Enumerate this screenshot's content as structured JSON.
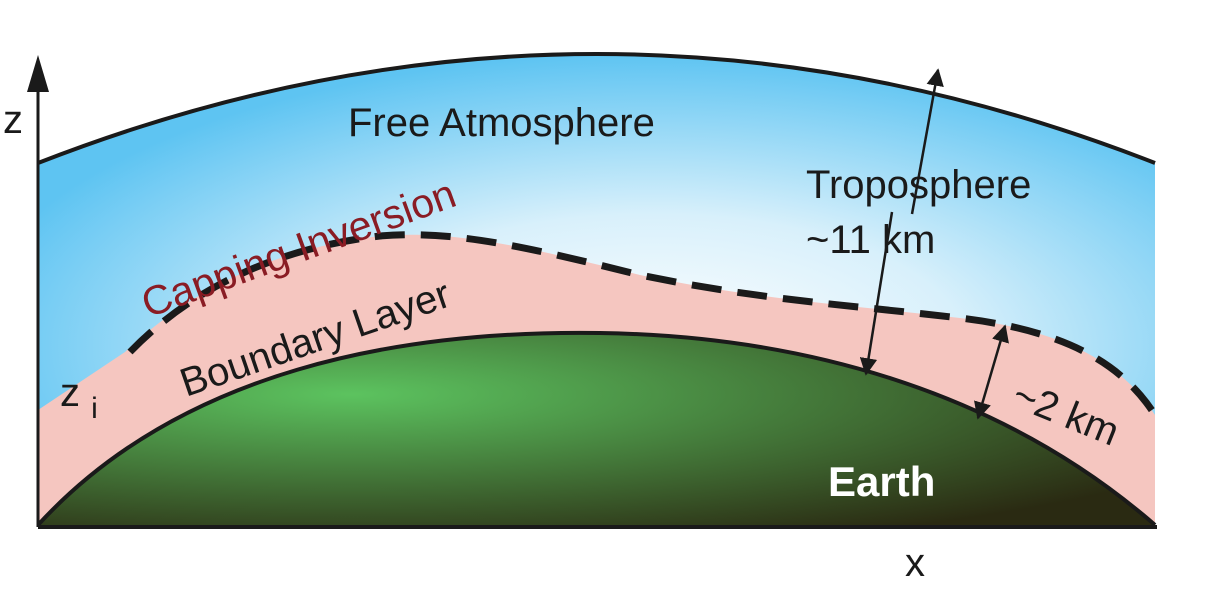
{
  "labels": {
    "free_atmosphere": "Free Atmosphere",
    "capping_inversion": "Capping Inversion",
    "boundary_layer": "Boundary Layer",
    "troposphere": "Troposphere",
    "troposphere_depth": "~11 km",
    "boundary_depth": "~2 km",
    "earth": "Earth",
    "axis_z": "z",
    "axis_x": "x",
    "zi_base": "z",
    "zi_sub": "i"
  },
  "colors": {
    "sky_edge": "#5ec4f2",
    "sky_center": "#ffffff",
    "boundary_layer": "#f5c6c0",
    "earth_light": "#5cc35f",
    "earth_dark": "#2a2a12",
    "inversion_text": "#8a1c24",
    "line": "#1a1a1a"
  }
}
